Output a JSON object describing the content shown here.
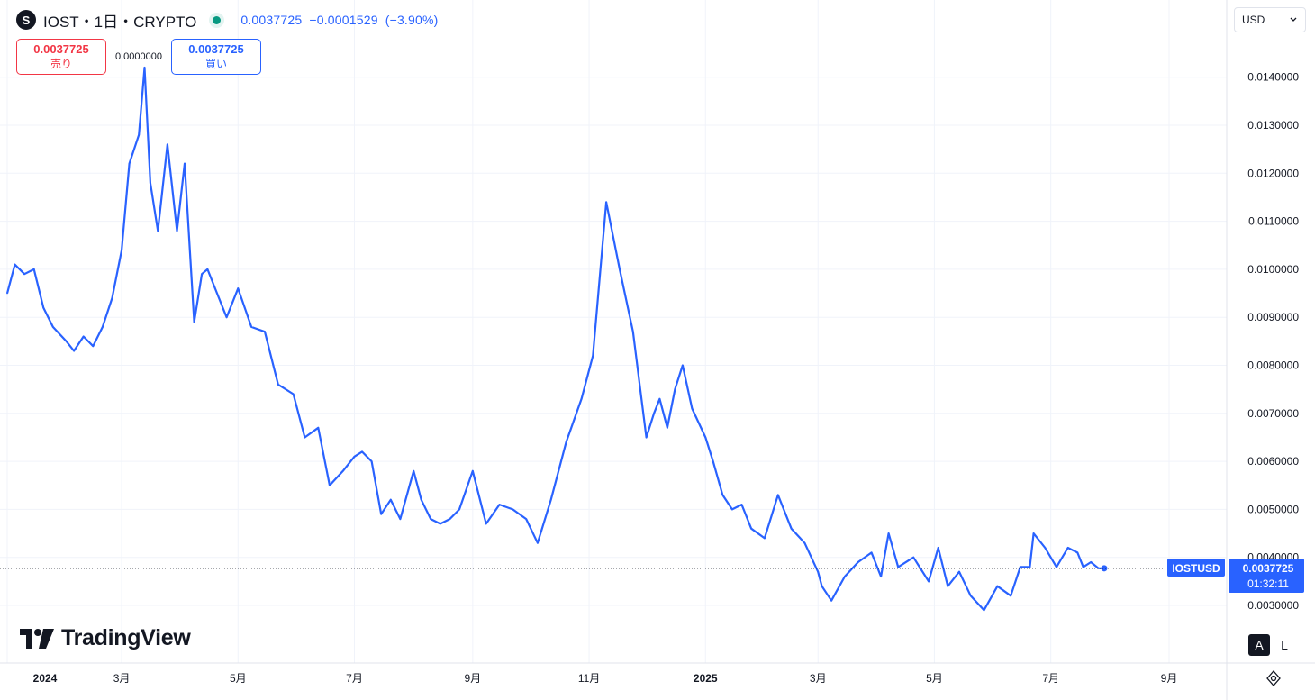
{
  "header": {
    "logo_letter": "S",
    "symbol_title": "IOST・1日・CRYPTO",
    "last_price": "0.0037725",
    "change": "−0.0001529",
    "change_pct": "(−3.90%)",
    "status_color": "#089981"
  },
  "trade": {
    "sell_price": "0.0037725",
    "sell_label": "売り",
    "spread": "0.0000000",
    "buy_price": "0.0037725",
    "buy_label": "買い"
  },
  "currency_select": {
    "value": "USD"
  },
  "branding": {
    "name": "TradingView"
  },
  "scale_buttons": {
    "auto": "A",
    "log": "L"
  },
  "price_tag": {
    "symbol": "IOSTUSD",
    "price": "0.0037725",
    "countdown": "01:32:11"
  },
  "colors": {
    "line": "#2962ff",
    "sell": "#f23645",
    "buy": "#2962ff"
  },
  "icons": [
    "coin-logo-icon",
    "chevron-down-icon",
    "tradingview-logo-icon",
    "settings-icon"
  ],
  "chart_data": {
    "type": "line",
    "series": [
      {
        "name": "IOSTUSD"
      }
    ],
    "x": [
      "2024-01-01",
      "2024-01-05",
      "2024-01-10",
      "2024-01-15",
      "2024-01-20",
      "2024-01-25",
      "2024-02-01",
      "2024-02-05",
      "2024-02-10",
      "2024-02-15",
      "2024-02-20",
      "2024-02-25",
      "2024-03-01",
      "2024-03-05",
      "2024-03-10",
      "2024-03-13",
      "2024-03-16",
      "2024-03-20",
      "2024-03-25",
      "2024-03-30",
      "2024-04-03",
      "2024-04-08",
      "2024-04-12",
      "2024-04-15",
      "2024-04-20",
      "2024-04-25",
      "2024-05-01",
      "2024-05-08",
      "2024-05-15",
      "2024-05-22",
      "2024-05-30",
      "2024-06-05",
      "2024-06-12",
      "2024-06-18",
      "2024-06-25",
      "2024-07-01",
      "2024-07-05",
      "2024-07-10",
      "2024-07-15",
      "2024-07-20",
      "2024-07-25",
      "2024-08-01",
      "2024-08-05",
      "2024-08-10",
      "2024-08-15",
      "2024-08-20",
      "2024-08-25",
      "2024-09-01",
      "2024-09-08",
      "2024-09-15",
      "2024-09-22",
      "2024-09-29",
      "2024-10-05",
      "2024-10-12",
      "2024-10-20",
      "2024-10-28",
      "2024-11-03",
      "2024-11-10",
      "2024-11-17",
      "2024-11-24",
      "2024-12-01",
      "2024-12-05",
      "2024-12-08",
      "2024-12-12",
      "2024-12-16",
      "2024-12-20",
      "2024-12-25",
      "2025-01-01",
      "2025-01-05",
      "2025-01-10",
      "2025-01-15",
      "2025-01-20",
      "2025-01-25",
      "2025-02-01",
      "2025-02-08",
      "2025-02-15",
      "2025-02-22",
      "2025-03-01",
      "2025-03-03",
      "2025-03-08",
      "2025-03-15",
      "2025-03-22",
      "2025-03-29",
      "2025-04-03",
      "2025-04-07",
      "2025-04-12",
      "2025-04-20",
      "2025-04-28",
      "2025-05-03",
      "2025-05-08",
      "2025-05-14",
      "2025-05-20",
      "2025-05-27",
      "2025-06-03",
      "2025-06-10",
      "2025-06-15",
      "2025-06-20",
      "2025-06-22",
      "2025-06-28",
      "2025-07-04",
      "2025-07-10",
      "2025-07-15",
      "2025-07-18",
      "2025-07-22",
      "2025-07-26",
      "2025-07-29"
    ],
    "values": [
      0.0095,
      0.0101,
      0.0099,
      0.01,
      0.0092,
      0.0088,
      0.0085,
      0.0083,
      0.0086,
      0.0084,
      0.0088,
      0.0094,
      0.0104,
      0.0122,
      0.0128,
      0.0142,
      0.0118,
      0.0108,
      0.0126,
      0.0108,
      0.0122,
      0.0089,
      0.0099,
      0.01,
      0.0095,
      0.009,
      0.0096,
      0.0088,
      0.0087,
      0.0076,
      0.0074,
      0.0065,
      0.0067,
      0.0055,
      0.0058,
      0.0061,
      0.0062,
      0.006,
      0.0049,
      0.0052,
      0.0048,
      0.0058,
      0.0052,
      0.0048,
      0.0047,
      0.0048,
      0.005,
      0.0058,
      0.0047,
      0.0051,
      0.005,
      0.0048,
      0.0043,
      0.0052,
      0.0064,
      0.0073,
      0.0082,
      0.0114,
      0.01,
      0.0087,
      0.0065,
      0.007,
      0.0073,
      0.0067,
      0.0075,
      0.008,
      0.0071,
      0.0065,
      0.006,
      0.0053,
      0.005,
      0.0051,
      0.0046,
      0.0044,
      0.0053,
      0.0046,
      0.0043,
      0.0037,
      0.0034,
      0.0031,
      0.0036,
      0.0039,
      0.0041,
      0.0036,
      0.0045,
      0.0038,
      0.004,
      0.0035,
      0.0042,
      0.0034,
      0.0037,
      0.0032,
      0.0029,
      0.0034,
      0.0032,
      0.0038,
      0.0038,
      0.0045,
      0.0042,
      0.0038,
      0.0042,
      0.0041,
      0.0038,
      0.0039,
      0.0037725,
      0.0037725
    ],
    "y_ticks": [
      "0.0140000",
      "0.0130000",
      "0.0120000",
      "0.0110000",
      "0.0100000",
      "0.0090000",
      "0.0080000",
      "0.0070000",
      "0.0060000",
      "0.0050000",
      "0.0040000",
      "0.0030000"
    ],
    "x_ticks": [
      "2024",
      "3月",
      "5月",
      "7月",
      "9月",
      "11月",
      "2025",
      "3月",
      "5月",
      "7月",
      "9月"
    ],
    "ylim": [
      0.002,
      0.0155
    ],
    "last_value": 0.0037725,
    "grid": true
  }
}
